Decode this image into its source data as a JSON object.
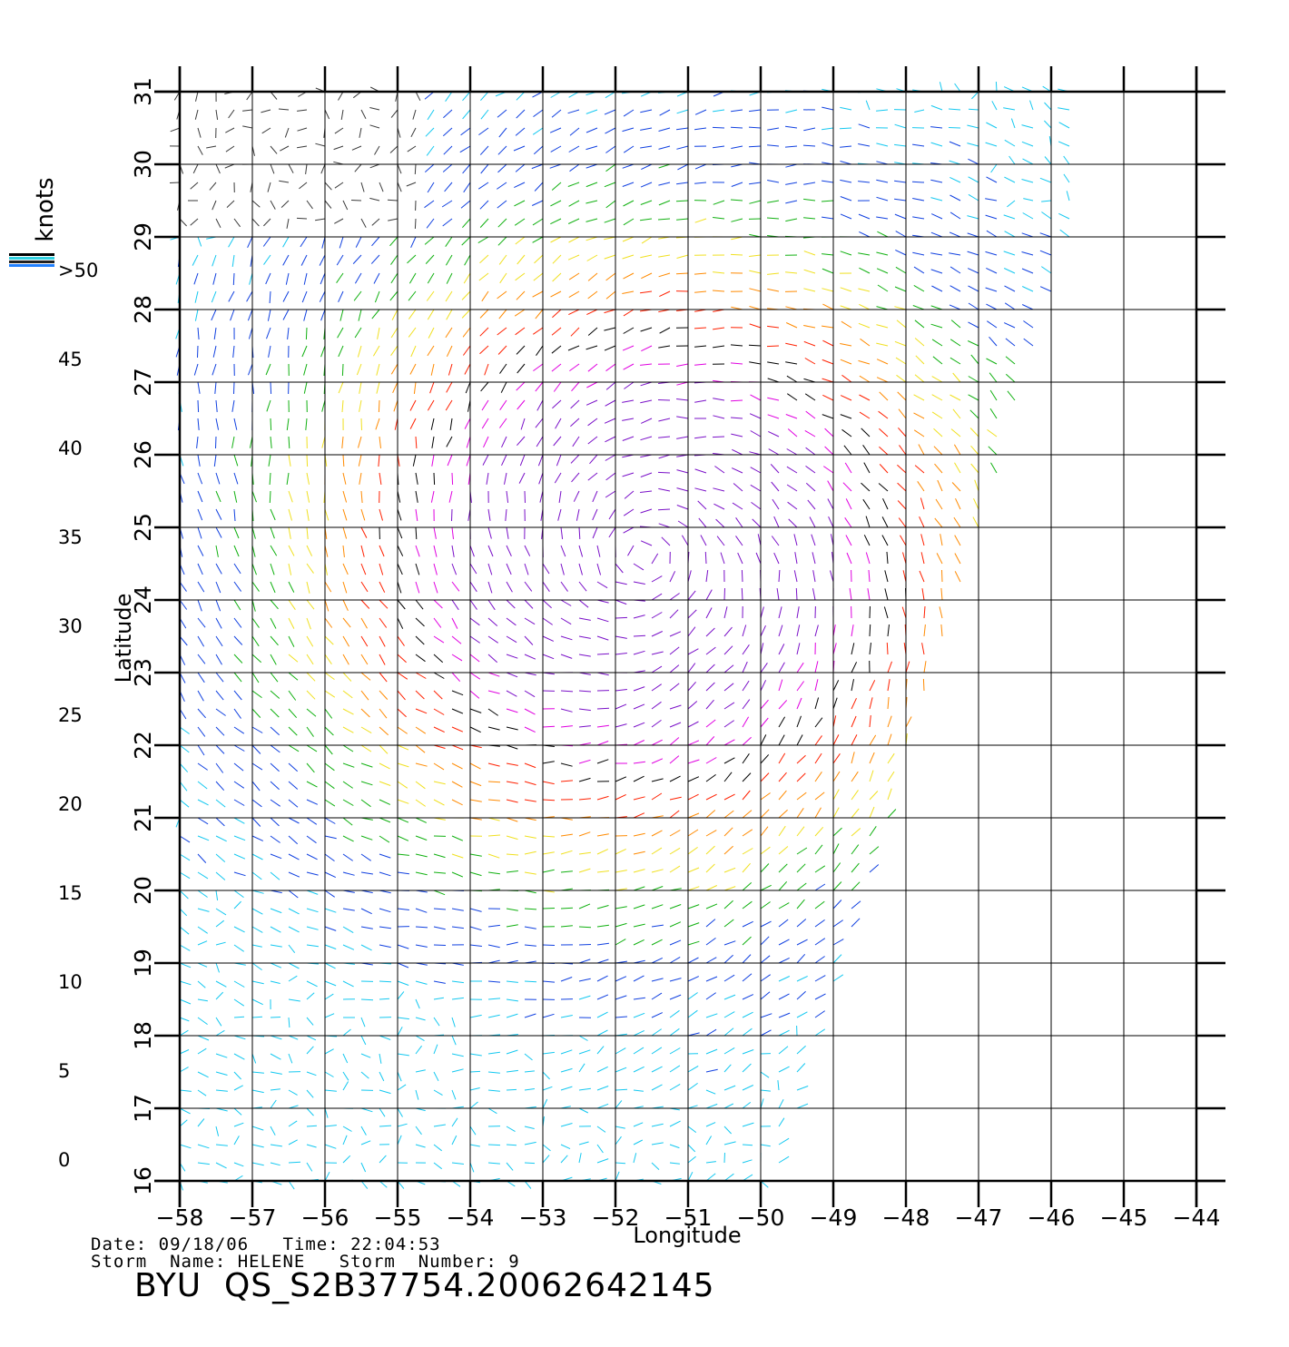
{
  "map": {
    "lon_ticks": [
      "-58",
      "-57",
      "-56",
      "-55",
      "-54",
      "-53",
      "-52",
      "-51",
      "-50",
      "-49",
      "-48",
      "-47",
      "-46",
      "-45",
      "-44"
    ],
    "lat_ticks": [
      "16",
      "17",
      "18",
      "19",
      "20",
      "21",
      "22",
      "23",
      "24",
      "25",
      "26",
      "27",
      "28",
      "29",
      "30",
      "31"
    ],
    "lon_range": [
      -58,
      -44
    ],
    "lat_range": [
      16,
      31
    ],
    "xlabel": "Longitude",
    "ylabel": "Latitude",
    "storm_center_approx": {
      "lon": -51.6,
      "lat": 24.6
    }
  },
  "colorbar": {
    "unit_label": "knots",
    "labels": [
      ">50",
      "45",
      "40",
      "35",
      "30",
      "25",
      "20",
      "15",
      "10",
      "5",
      "0"
    ],
    "bands": [
      {
        "range": "0-5",
        "top": "#303030",
        "bottom": "#8a8a8a"
      },
      {
        "range": "5-10",
        "top": "#0090ff",
        "bottom": "#00f2ff"
      },
      {
        "range": "10-15",
        "top": "#0000f0",
        "bottom": "#0070ff"
      },
      {
        "range": "15-20",
        "top": "#006010",
        "bottom": "#00ff00"
      },
      {
        "range": "20-25",
        "top": "#ffc000",
        "bottom": "#ffff20"
      },
      {
        "range": "25-30",
        "top": "#e03000",
        "bottom": "#ff9000"
      },
      {
        "range": "30-35",
        "top": "#ff0000",
        "bottom": "#ff3000"
      },
      {
        "range": "35-40",
        "top": "#3a0a00",
        "bottom": "#c08060"
      },
      {
        "range": "40-45",
        "top": "#a000d0",
        "bottom": "#ff00ff"
      },
      {
        "range": "45-50",
        "top": "#6000c0",
        "bottom": "#a000d0"
      }
    ]
  },
  "info": {
    "date_time": "Date: 09/18/06   Time: 22:04:53",
    "storm": "Storm  Name: HELENE   Storm  Number: 9",
    "product": "BYU  QS_S2B37754.20062642145"
  }
}
